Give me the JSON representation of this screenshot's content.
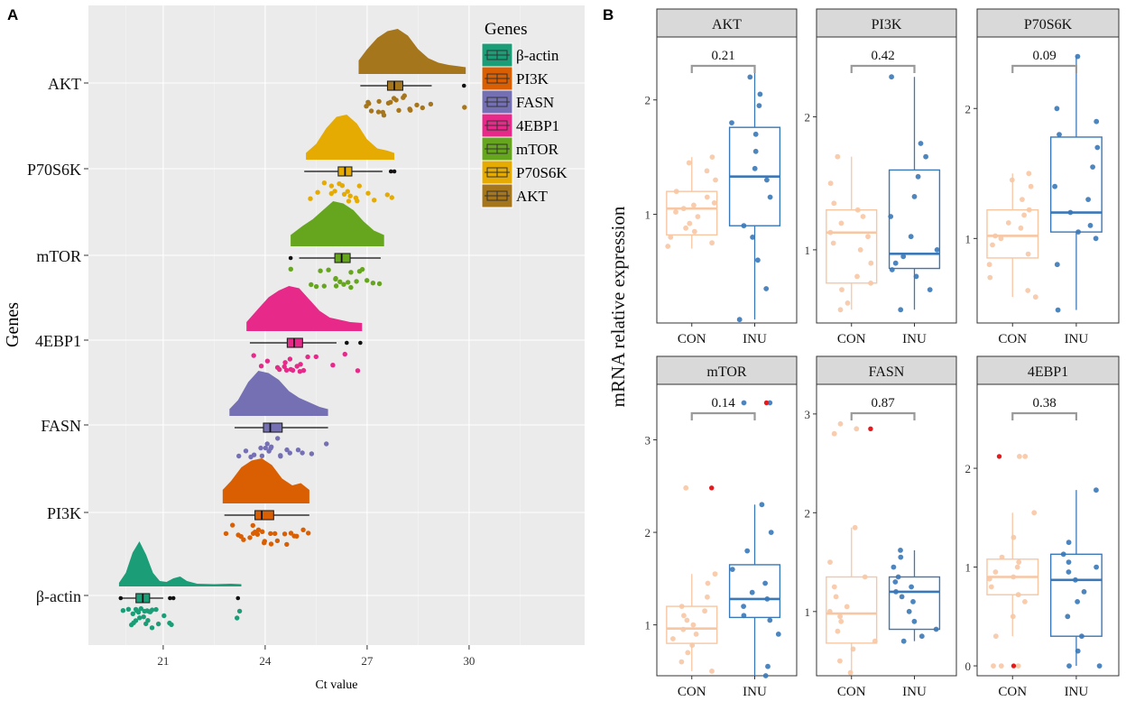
{
  "panel_a_label": "A",
  "panel_b_label": "B",
  "chart_data": [
    {
      "type": "raincloud",
      "panel": "A",
      "xlabel": "Ct value",
      "ylabel": "Genes",
      "xlim": [
        18.8,
        33.4
      ],
      "xticks": [
        21,
        24,
        27,
        30
      ],
      "grid": true,
      "legend": {
        "title": "Genes",
        "position": "top-right",
        "entries": [
          {
            "name": "β-actin",
            "color": "#1b9e77"
          },
          {
            "name": "PI3K",
            "color": "#d95f02"
          },
          {
            "name": "FASN",
            "color": "#7570b3"
          },
          {
            "name": "4EBP1",
            "color": "#e7298a"
          },
          {
            "name": "mTOR",
            "color": "#66a61e"
          },
          {
            "name": "P70S6K",
            "color": "#e6ab02"
          },
          {
            "name": "AKT",
            "color": "#a6761d"
          }
        ]
      },
      "genes": [
        {
          "name": "β-actin",
          "color": "#1b9e77",
          "q1": 20.2,
          "median": 20.4,
          "q3": 20.6,
          "whisker_low": 19.8,
          "whisker_high": 21.0,
          "outliers": [
            19.75,
            21.2,
            21.3,
            23.2
          ],
          "density_x": [
            19.7,
            19.9,
            20.1,
            20.3,
            20.5,
            20.7,
            20.9,
            21.1,
            21.3,
            21.5,
            21.7,
            22.0,
            22.5,
            23.0,
            23.3
          ],
          "density_y": [
            0.08,
            0.3,
            0.75,
            1.0,
            0.7,
            0.3,
            0.12,
            0.1,
            0.18,
            0.22,
            0.12,
            0.06,
            0.05,
            0.06,
            0.05
          ],
          "points": [
            19.9,
            20.0,
            20.05,
            20.1,
            20.15,
            20.2,
            20.2,
            20.25,
            20.3,
            20.3,
            20.35,
            20.4,
            20.4,
            20.45,
            20.5,
            20.5,
            20.55,
            20.6,
            20.65,
            20.7,
            20.75,
            20.85,
            21.0,
            21.2,
            21.3,
            23.2,
            23.25
          ]
        },
        {
          "name": "PI3K",
          "color": "#d95f02",
          "q1": 23.7,
          "median": 23.9,
          "q3": 24.25,
          "whisker_low": 22.8,
          "whisker_high": 25.3,
          "outliers": [],
          "density_x": [
            22.75,
            23.0,
            23.3,
            23.6,
            23.9,
            24.2,
            24.5,
            24.8,
            25.05,
            25.3
          ],
          "density_y": [
            0.3,
            0.5,
            0.8,
            0.95,
            1.0,
            0.85,
            0.55,
            0.4,
            0.45,
            0.3
          ],
          "points": [
            22.9,
            23.0,
            23.2,
            23.3,
            23.4,
            23.5,
            23.6,
            23.65,
            23.7,
            23.8,
            23.85,
            23.9,
            23.95,
            24.0,
            24.1,
            24.2,
            24.3,
            24.4,
            24.5,
            24.6,
            24.7,
            24.8,
            25.0,
            25.1,
            25.2
          ]
        },
        {
          "name": "FASN",
          "color": "#7570b3",
          "q1": 23.95,
          "median": 24.15,
          "q3": 24.5,
          "whisker_low": 23.1,
          "whisker_high": 25.85,
          "outliers": [],
          "density_x": [
            22.95,
            23.2,
            23.5,
            23.8,
            24.1,
            24.4,
            24.7,
            25.0,
            25.3,
            25.6,
            25.85
          ],
          "density_y": [
            0.15,
            0.35,
            0.75,
            1.0,
            0.95,
            0.8,
            0.55,
            0.4,
            0.3,
            0.2,
            0.15
          ],
          "points": [
            23.3,
            23.5,
            23.6,
            23.7,
            23.8,
            23.9,
            24.0,
            24.05,
            24.1,
            24.15,
            24.2,
            24.3,
            24.4,
            24.5,
            24.6,
            24.7,
            24.9,
            25.1,
            25.3,
            25.8
          ]
        },
        {
          "name": "4EBP1",
          "color": "#e7298a",
          "q1": 24.65,
          "median": 24.85,
          "q3": 25.1,
          "whisker_low": 23.55,
          "whisker_high": 26.1,
          "outliers": [
            26.4,
            26.8
          ],
          "density_x": [
            23.45,
            23.8,
            24.1,
            24.4,
            24.7,
            25.0,
            25.3,
            25.6,
            25.9,
            26.2,
            26.5,
            26.85
          ],
          "density_y": [
            0.2,
            0.5,
            0.75,
            0.9,
            1.0,
            0.95,
            0.7,
            0.45,
            0.3,
            0.25,
            0.2,
            0.18
          ],
          "points": [
            23.7,
            23.9,
            24.1,
            24.3,
            24.4,
            24.5,
            24.6,
            24.65,
            24.7,
            24.8,
            24.85,
            24.9,
            25.0,
            25.1,
            25.2,
            25.3,
            25.5,
            26.0,
            26.4,
            26.8
          ]
        },
        {
          "name": "mTOR",
          "color": "#66a61e",
          "q1": 26.05,
          "median": 26.25,
          "q3": 26.5,
          "whisker_low": 25.0,
          "whisker_high": 27.4,
          "outliers": [
            24.75
          ],
          "density_x": [
            24.75,
            25.1,
            25.4,
            25.7,
            26.0,
            26.3,
            26.6,
            26.9,
            27.2,
            27.5
          ],
          "density_y": [
            0.25,
            0.45,
            0.6,
            0.8,
            1.0,
            0.95,
            0.8,
            0.55,
            0.35,
            0.25
          ],
          "points": [
            24.8,
            25.3,
            25.5,
            25.7,
            25.8,
            25.9,
            26.0,
            26.1,
            26.15,
            26.2,
            26.3,
            26.4,
            26.5,
            26.6,
            26.7,
            26.8,
            26.9,
            27.0,
            27.2,
            27.3
          ]
        },
        {
          "name": "P70S6K",
          "color": "#e6ab02",
          "q1": 26.15,
          "median": 26.35,
          "q3": 26.55,
          "whisker_low": 25.15,
          "whisker_high": 27.45,
          "outliers": [
            27.7,
            27.8
          ],
          "density_x": [
            25.2,
            25.5,
            25.8,
            26.1,
            26.4,
            26.7,
            27.0,
            27.3,
            27.6,
            27.8
          ],
          "density_y": [
            0.15,
            0.35,
            0.7,
            0.95,
            1.0,
            0.8,
            0.45,
            0.25,
            0.2,
            0.15
          ],
          "points": [
            25.4,
            25.6,
            25.8,
            25.9,
            26.0,
            26.1,
            26.15,
            26.2,
            26.3,
            26.35,
            26.4,
            26.5,
            26.6,
            26.7,
            26.8,
            27.0,
            27.2,
            27.6,
            27.8
          ]
        },
        {
          "name": "AKT",
          "color": "#a6761d",
          "q1": 27.6,
          "median": 27.8,
          "q3": 28.05,
          "whisker_low": 26.8,
          "whisker_high": 28.9,
          "outliers": [
            29.85
          ],
          "density_x": [
            26.75,
            27.0,
            27.3,
            27.6,
            27.9,
            28.2,
            28.5,
            28.8,
            29.1,
            29.4,
            29.9
          ],
          "density_y": [
            0.3,
            0.55,
            0.8,
            0.95,
            1.0,
            0.85,
            0.55,
            0.35,
            0.25,
            0.2,
            0.15
          ],
          "points": [
            26.9,
            27.0,
            27.1,
            27.2,
            27.3,
            27.4,
            27.5,
            27.55,
            27.6,
            27.7,
            27.75,
            27.8,
            27.9,
            28.0,
            28.1,
            28.2,
            28.3,
            28.4,
            28.6,
            28.8,
            29.85
          ]
        }
      ]
    },
    {
      "type": "boxplot-facets",
      "panel": "B",
      "ylabel": "mRNA relative expression",
      "groups": [
        "CON",
        "INU"
      ],
      "group_colors": {
        "CON": "#f7c6a3",
        "INU": "#3a78b8"
      },
      "facets": [
        {
          "title": "AKT",
          "ylim": [
            0.05,
            2.55
          ],
          "yticks": [
            1,
            2
          ],
          "pvalue": "0.21",
          "CON": {
            "q1": 0.82,
            "median": 1.05,
            "q3": 1.2,
            "whisker_low": 0.7,
            "whisker_high": 1.5,
            "points": [
              0.72,
              0.75,
              0.8,
              0.85,
              0.88,
              0.92,
              0.98,
              1.02,
              1.05,
              1.08,
              1.1,
              1.15,
              1.2,
              1.3,
              1.38,
              1.45,
              1.5
            ],
            "red_points": []
          },
          "INU": {
            "q1": 0.9,
            "median": 1.33,
            "q3": 1.76,
            "whisker_low": 0.08,
            "whisker_high": 2.28,
            "points": [
              0.08,
              0.35,
              0.6,
              0.8,
              0.9,
              1.15,
              1.3,
              1.4,
              1.55,
              1.7,
              1.8,
              1.95,
              2.05,
              2.2
            ],
            "red_points": []
          }
        },
        {
          "title": "PI3K",
          "ylim": [
            0.45,
            2.6
          ],
          "yticks": [
            1,
            2
          ],
          "pvalue": "0.42",
          "CON": {
            "q1": 0.75,
            "median": 1.13,
            "q3": 1.3,
            "whisker_low": 0.55,
            "whisker_high": 1.7,
            "points": [
              0.55,
              0.6,
              0.7,
              0.75,
              0.8,
              0.9,
              1.0,
              1.05,
              1.1,
              1.13,
              1.2,
              1.25,
              1.3,
              1.35,
              1.5,
              1.7
            ],
            "red_points": []
          },
          "INU": {
            "q1": 0.86,
            "median": 0.97,
            "q3": 1.6,
            "whisker_low": 0.55,
            "whisker_high": 2.3,
            "points": [
              0.55,
              0.7,
              0.8,
              0.85,
              0.9,
              0.95,
              1.0,
              1.1,
              1.25,
              1.4,
              1.55,
              1.7,
              1.8,
              2.3
            ],
            "red_points": []
          }
        },
        {
          "title": "P70S6K",
          "ylim": [
            0.35,
            2.55
          ],
          "yticks": [
            1,
            2
          ],
          "pvalue": "0.09",
          "CON": {
            "q1": 0.85,
            "median": 1.02,
            "q3": 1.22,
            "whisker_low": 0.55,
            "whisker_high": 1.5,
            "points": [
              0.55,
              0.6,
              0.7,
              0.8,
              0.88,
              0.95,
              1.0,
              1.02,
              1.08,
              1.12,
              1.18,
              1.22,
              1.3,
              1.4,
              1.45,
              1.5
            ],
            "red_points": []
          },
          "INU": {
            "q1": 1.05,
            "median": 1.2,
            "q3": 1.78,
            "whisker_low": 0.45,
            "whisker_high": 2.4,
            "points": [
              0.45,
              0.8,
              1.0,
              1.05,
              1.1,
              1.2,
              1.3,
              1.4,
              1.55,
              1.7,
              1.8,
              1.9,
              2.0,
              2.4
            ],
            "red_points": []
          }
        },
        {
          "title": "mTOR",
          "ylim": [
            0.45,
            3.6
          ],
          "yticks": [
            1,
            2,
            3
          ],
          "pvalue": "0.14",
          "CON": {
            "q1": 0.8,
            "median": 0.96,
            "q3": 1.2,
            "whisker_low": 0.5,
            "whisker_high": 1.55,
            "points": [
              0.5,
              0.6,
              0.7,
              0.78,
              0.85,
              0.9,
              0.95,
              1.0,
              1.05,
              1.1,
              1.15,
              1.2,
              1.3,
              1.45,
              1.55,
              2.48
            ],
            "red_points": [
              2.48
            ]
          },
          "INU": {
            "q1": 1.08,
            "median": 1.28,
            "q3": 1.65,
            "whisker_low": 0.45,
            "whisker_high": 2.3,
            "points": [
              0.45,
              0.55,
              0.9,
              1.05,
              1.1,
              1.2,
              1.28,
              1.35,
              1.45,
              1.6,
              1.8,
              2.0,
              2.3,
              3.4,
              3.4
            ],
            "red_points": [
              3.4
            ]
          }
        },
        {
          "title": "FASN",
          "ylim": [
            0.35,
            3.3
          ],
          "yticks": [
            1,
            2,
            3
          ],
          "pvalue": "0.87",
          "CON": {
            "q1": 0.68,
            "median": 0.98,
            "q3": 1.35,
            "whisker_low": 0.38,
            "whisker_high": 1.85,
            "points": [
              0.38,
              0.5,
              0.62,
              0.7,
              0.8,
              0.9,
              0.95,
              1.0,
              1.05,
              1.15,
              1.25,
              1.35,
              1.5,
              1.85,
              2.8,
              2.85,
              2.9
            ],
            "red_points": [
              2.85
            ]
          },
          "INU": {
            "q1": 0.82,
            "median": 1.2,
            "q3": 1.35,
            "whisker_low": 0.7,
            "whisker_high": 1.62,
            "points": [
              0.7,
              0.75,
              0.82,
              0.9,
              1.0,
              1.1,
              1.15,
              1.2,
              1.25,
              1.3,
              1.35,
              1.45,
              1.55,
              1.62
            ],
            "red_points": []
          }
        },
        {
          "title": "4EBP1",
          "ylim": [
            -0.1,
            2.85
          ],
          "yticks": [
            0,
            1,
            2
          ],
          "pvalue": "0.38",
          "CON": {
            "q1": 0.72,
            "median": 0.9,
            "q3": 1.08,
            "whisker_low": 0.3,
            "whisker_high": 1.55,
            "points": [
              0.0,
              0.0,
              0.0,
              0.3,
              0.5,
              0.65,
              0.72,
              0.8,
              0.88,
              0.9,
              0.95,
              1.0,
              1.05,
              1.1,
              1.3,
              1.55,
              2.12,
              2.12
            ],
            "red_points": [
              0.0,
              2.12
            ]
          },
          "INU": {
            "q1": 0.3,
            "median": 0.87,
            "q3": 1.13,
            "whisker_low": 0.0,
            "whisker_high": 1.78,
            "points": [
              0.0,
              0.0,
              0.15,
              0.3,
              0.5,
              0.65,
              0.75,
              0.87,
              0.95,
              1.0,
              1.05,
              1.13,
              1.25,
              1.78
            ],
            "red_points": []
          }
        }
      ]
    }
  ]
}
